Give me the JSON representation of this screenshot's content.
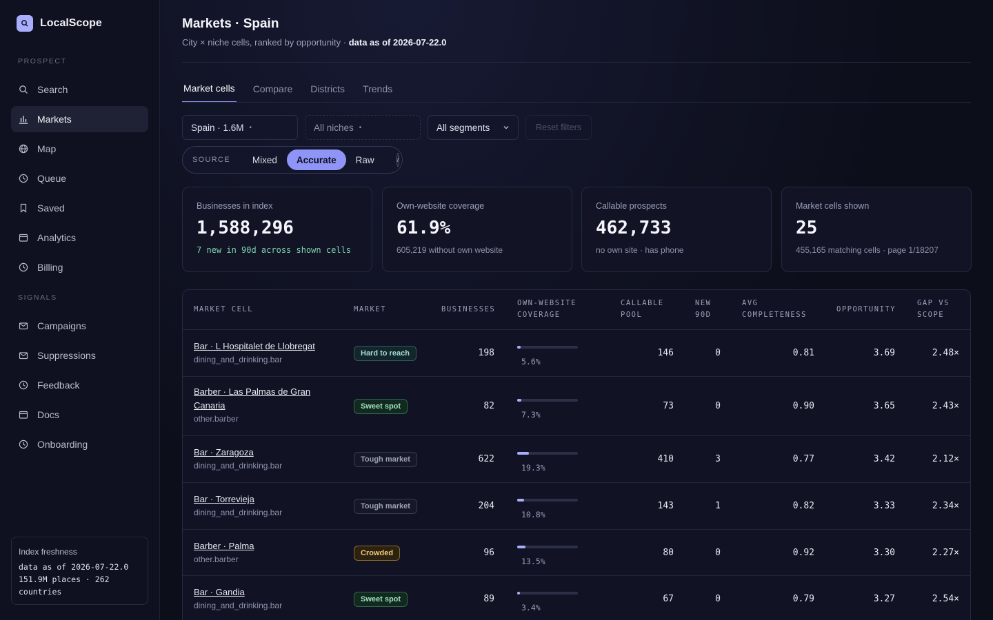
{
  "app": {
    "name": "LocalScope"
  },
  "sidebar": {
    "sections": [
      {
        "label": "PROSPECT",
        "items": [
          {
            "label": "Search",
            "icon": "search-icon",
            "active": false
          },
          {
            "label": "Markets",
            "icon": "bar-chart-icon",
            "active": true
          },
          {
            "label": "Map",
            "icon": "globe-icon",
            "active": false
          },
          {
            "label": "Queue",
            "icon": "clock-icon",
            "active": false
          },
          {
            "label": "Saved",
            "icon": "bookmark-icon",
            "active": false
          },
          {
            "label": "Analytics",
            "icon": "calendar-icon",
            "active": false
          },
          {
            "label": "Billing",
            "icon": "clock-icon",
            "active": false
          }
        ]
      },
      {
        "label": "SIGNALS",
        "items": [
          {
            "label": "Campaigns",
            "icon": "mail-icon",
            "active": false
          },
          {
            "label": "Suppressions",
            "icon": "mail-icon",
            "active": false
          },
          {
            "label": "Feedback",
            "icon": "clock-icon",
            "active": false
          },
          {
            "label": "Docs",
            "icon": "calendar-icon",
            "active": false
          },
          {
            "label": "Onboarding",
            "icon": "clock-icon",
            "active": false
          }
        ]
      }
    ],
    "freshness": {
      "title": "Index freshness",
      "line1": "data as of 2026-07-22.0",
      "line2": "151.9M places · 262",
      "line3": "countries"
    }
  },
  "header": {
    "title": "Markets · Spain",
    "subtitle": "City × niche cells, ranked by opportunity · ",
    "subtitle_bold": "data as of 2026-07-22.0"
  },
  "tabs": [
    {
      "label": "Market cells",
      "active": true
    },
    {
      "label": "Compare",
      "active": false
    },
    {
      "label": "Districts",
      "active": false
    },
    {
      "label": "Trends",
      "active": false
    }
  ],
  "filters": {
    "country": "Spain · 1.6M",
    "niches": "All niches",
    "segments": "All segments",
    "reset": "Reset filters"
  },
  "source": {
    "label": "SOURCE",
    "options": [
      "Mixed",
      "Accurate",
      "Raw"
    ],
    "selected": "Accurate",
    "info": "i"
  },
  "stats": [
    {
      "label": "Businesses in index",
      "value": "1,588,296",
      "sub": "7 new in 90d across shown cells",
      "sub_style": "green"
    },
    {
      "label": "Own-website coverage",
      "value": "61.9%",
      "sub": "605,219 without own website",
      "sub_style": "muted"
    },
    {
      "label": "Callable prospects",
      "value": "462,733",
      "sub": "no own site · has phone",
      "sub_style": "muted"
    },
    {
      "label": "Market cells shown",
      "value": "25",
      "sub": "455,165 matching cells · page 1/18207",
      "sub_style": "muted"
    }
  ],
  "table": {
    "headers": {
      "market_cell": "MARKET CELL",
      "market": "MARKET",
      "businesses": "BUSINESSES",
      "coverage_1": "OWN-WEBSITE",
      "coverage_2": "COVERAGE",
      "callable_1": "CALLABLE",
      "callable_2": "POOL",
      "new_1": "NEW",
      "new_2": "90D",
      "completeness_1": "AVG",
      "completeness_2": "COMPLETENESS",
      "opportunity": "OPPORTUNITY",
      "gap_1": "GAP VS",
      "gap_2": "SCOPE"
    },
    "rows": [
      {
        "name": "Bar · L Hospitalet de Llobregat",
        "niche": "dining_and_drinking.bar",
        "market": "Hard to reach",
        "market_style": "hard",
        "businesses": "198",
        "coverage": 5.6,
        "coverage_label": "5.6%",
        "callable": "146",
        "new90": "0",
        "completeness": "0.81",
        "opportunity": "3.69",
        "gap": "2.48×"
      },
      {
        "name": "Barber · Las Palmas de Gran Canaria",
        "niche": "other.barber",
        "market": "Sweet spot",
        "market_style": "sweet",
        "businesses": "82",
        "coverage": 7.3,
        "coverage_label": "7.3%",
        "callable": "73",
        "new90": "0",
        "completeness": "0.90",
        "opportunity": "3.65",
        "gap": "2.43×"
      },
      {
        "name": "Bar · Zaragoza",
        "niche": "dining_and_drinking.bar",
        "market": "Tough market",
        "market_style": "tough",
        "businesses": "622",
        "coverage": 19.3,
        "coverage_label": "19.3%",
        "callable": "410",
        "new90": "3",
        "completeness": "0.77",
        "opportunity": "3.42",
        "gap": "2.12×"
      },
      {
        "name": "Bar · Torrevieja",
        "niche": "dining_and_drinking.bar",
        "market": "Tough market",
        "market_style": "tough",
        "businesses": "204",
        "coverage": 10.8,
        "coverage_label": "10.8%",
        "callable": "143",
        "new90": "1",
        "completeness": "0.82",
        "opportunity": "3.33",
        "gap": "2.34×"
      },
      {
        "name": "Barber · Palma",
        "niche": "other.barber",
        "market": "Crowded",
        "market_style": "crowd",
        "businesses": "96",
        "coverage": 13.5,
        "coverage_label": "13.5%",
        "callable": "80",
        "new90": "0",
        "completeness": "0.92",
        "opportunity": "3.30",
        "gap": "2.27×"
      },
      {
        "name": "Bar · Gandia",
        "niche": "dining_and_drinking.bar",
        "market": "Sweet spot",
        "market_style": "sweet",
        "businesses": "89",
        "coverage": 3.4,
        "coverage_label": "3.4%",
        "callable": "67",
        "new90": "0",
        "completeness": "0.79",
        "opportunity": "3.27",
        "gap": "2.54×"
      }
    ]
  },
  "colors": {
    "accent": "#8f95f6",
    "background": "#0c0e1a",
    "positive": "#7fd3b0"
  }
}
